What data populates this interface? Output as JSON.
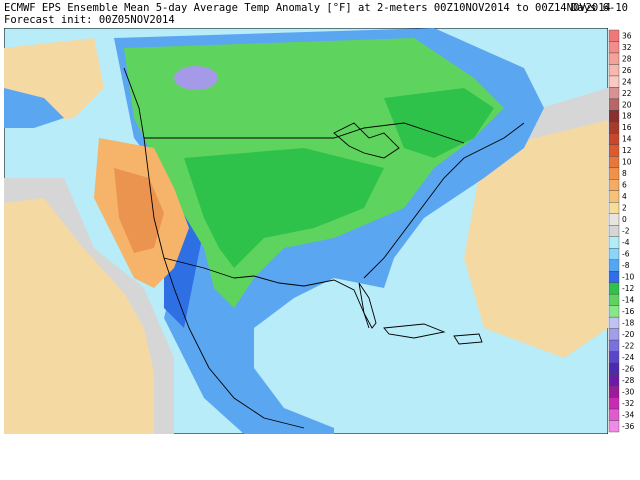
{
  "header": {
    "title": "ECMWF EPS Ensemble Mean 5-day Average Temp Anomaly [°F]  at 2-meters 00Z10NOV2014  to 00Z14NOV2014",
    "days": "Days 6-10",
    "init": "Forecast init: 00Z05NOV2014"
  },
  "colorbar": {
    "levels": [
      {
        "label": "36",
        "color": "#f07878"
      },
      {
        "label": "32",
        "color": "#f58c8c"
      },
      {
        "label": "28",
        "color": "#f4a29a"
      },
      {
        "label": "26",
        "color": "#f7b8ae"
      },
      {
        "label": "24",
        "color": "#f9c9c2"
      },
      {
        "label": "22",
        "color": "#d89292"
      },
      {
        "label": "20",
        "color": "#b86666"
      },
      {
        "label": "18",
        "color": "#8a2f2f"
      },
      {
        "label": "16",
        "color": "#a83a2a"
      },
      {
        "label": "14",
        "color": "#c8462a"
      },
      {
        "label": "12",
        "color": "#dc5a2e"
      },
      {
        "label": "10",
        "color": "#e9763a"
      },
      {
        "label": "8",
        "color": "#f0924a"
      },
      {
        "label": "6",
        "color": "#f5ab60"
      },
      {
        "label": "4",
        "color": "#f6c279"
      },
      {
        "label": "2",
        "color": "#f9dc98"
      },
      {
        "label": "0",
        "color": "#e8e4e0"
      },
      {
        "label": "-2",
        "color": "#d6d6d6"
      },
      {
        "label": "-4",
        "color": "#b2eef8"
      },
      {
        "label": "-6",
        "color": "#8ad6f8"
      },
      {
        "label": "-8",
        "color": "#55a6f2"
      },
      {
        "label": "-10",
        "color": "#2f6ee6"
      },
      {
        "label": "-12",
        "color": "#2ec24a"
      },
      {
        "label": "-14",
        "color": "#5ed45e"
      },
      {
        "label": "-16",
        "color": "#8ae68a"
      },
      {
        "label": "-18",
        "color": "#c2c2f2"
      },
      {
        "label": "-20",
        "color": "#a0a0ea"
      },
      {
        "label": "-22",
        "color": "#7a70e0"
      },
      {
        "label": "-24",
        "color": "#5a46c8"
      },
      {
        "label": "-26",
        "color": "#4a2ab0"
      },
      {
        "label": "-28",
        "color": "#6a1aa8"
      },
      {
        "label": "-30",
        "color": "#9a1a98"
      },
      {
        "label": "-32",
        "color": "#c82ab4"
      },
      {
        "label": "-34",
        "color": "#e05ad0"
      },
      {
        "label": "-36",
        "color": "#f08ae6"
      }
    ]
  },
  "map": {
    "region": "North America",
    "colors": {
      "ocean": "#b8ecf8",
      "warm_ocean": "#f5d9a2",
      "warm_land": "#f5b46a",
      "warm_peak": "#eb9450",
      "neutral": "#e2e2e2",
      "cool_blue": "#5ba6f0",
      "deep_blue": "#2e6fe4",
      "green": "#5ed45e",
      "dark_green": "#2ec24a",
      "purple": "#a59ae8",
      "border": "#000000"
    }
  }
}
